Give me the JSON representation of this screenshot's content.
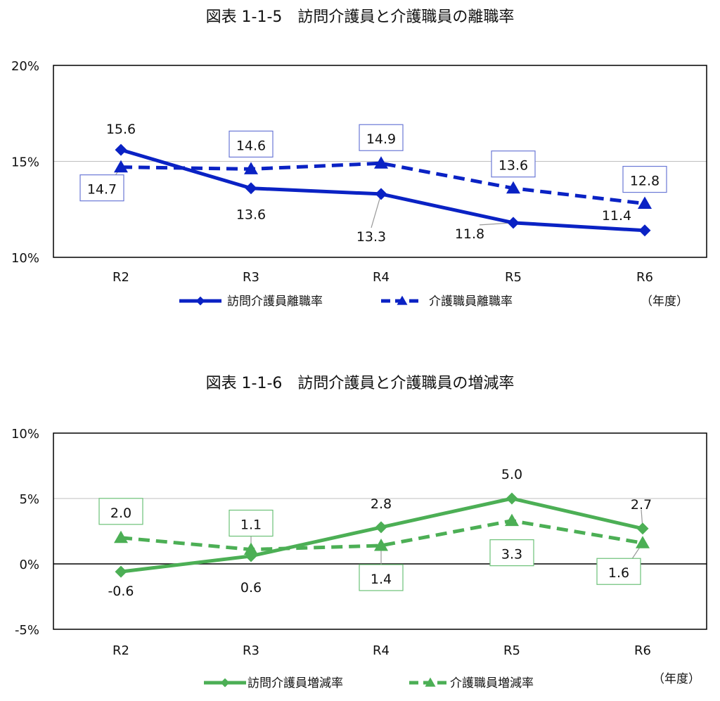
{
  "charts": [
    {
      "title": "図表 1-1-5　訪問介護員と介護職員の離職率",
      "unit": "（年度）",
      "colors": {
        "main": "#0a22c4",
        "box": "#6a78d6",
        "grid": "#bfbfbf"
      }
    },
    {
      "title": "図表 1-1-6　訪問介護員と介護職員の増減率",
      "unit": "（年度）",
      "colors": {
        "main": "#4caf55",
        "box": "#6cc177",
        "grid": "#bfbfbf"
      }
    }
  ],
  "chart_data": [
    {
      "type": "line",
      "title": "図表 1-1-5　訪問介護員と介護職員の離職率",
      "categories": [
        "R2",
        "R3",
        "R4",
        "R5",
        "R6"
      ],
      "ylim": [
        10,
        20
      ],
      "yticks": [
        10,
        15,
        20
      ],
      "ytick_labels": [
        "10%",
        "15%",
        "20%"
      ],
      "grid": true,
      "legend_position": "bottom",
      "series": [
        {
          "name": "訪問介護員離職率",
          "values": [
            15.6,
            13.6,
            13.3,
            11.8,
            11.4
          ],
          "labels": [
            "15.6",
            "13.6",
            "13.3",
            "11.8",
            "11.4"
          ],
          "marker": "diamond",
          "dash": false
        },
        {
          "name": "介護職員離職率",
          "values": [
            14.7,
            14.6,
            14.9,
            13.6,
            12.8
          ],
          "labels": [
            "14.7",
            "14.6",
            "14.9",
            "13.6",
            "12.8"
          ],
          "marker": "triangle",
          "dash": true
        }
      ]
    },
    {
      "type": "line",
      "title": "図表 1-1-6　訪問介護員と介護職員の増減率",
      "categories": [
        "R2",
        "R3",
        "R4",
        "R5",
        "R6"
      ],
      "ylim": [
        -5,
        10
      ],
      "yticks": [
        -5,
        0,
        5,
        10
      ],
      "ytick_labels": [
        "-5%",
        "0%",
        "5%",
        "10%"
      ],
      "grid": true,
      "legend_position": "bottom",
      "series": [
        {
          "name": "訪問介護員増減率",
          "values": [
            -0.6,
            0.6,
            2.8,
            5.0,
            2.7
          ],
          "labels": [
            "-0.6",
            "0.6",
            "2.8",
            "5.0",
            "2.7"
          ],
          "marker": "diamond",
          "dash": false
        },
        {
          "name": "介護職員増減率",
          "values": [
            2.0,
            1.1,
            1.4,
            3.3,
            1.6
          ],
          "labels": [
            "2.0",
            "1.1",
            "1.4",
            "3.3",
            "1.6"
          ],
          "marker": "triangle",
          "dash": true
        }
      ]
    }
  ]
}
